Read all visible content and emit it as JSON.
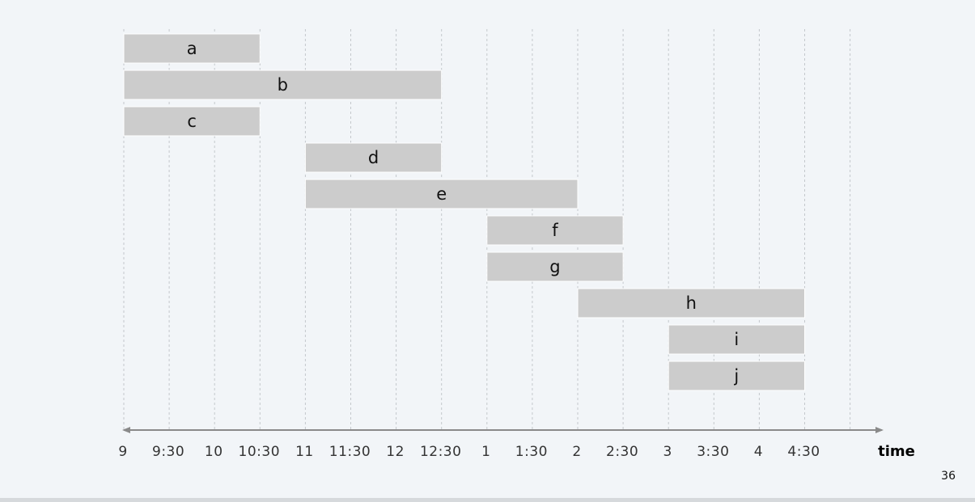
{
  "chart_data": {
    "type": "bar",
    "orientation": "horizontal-intervals",
    "xlabel": "time",
    "ticks": [
      "9",
      "9:30",
      "10",
      "10:30",
      "11",
      "11:30",
      "12",
      "12:30",
      "1",
      "1:30",
      "2",
      "2:30",
      "3",
      "3:30",
      "4",
      "4:30"
    ],
    "grid": true,
    "bar_color": "#cccccc",
    "series": [
      {
        "name": "a",
        "start": 0.0,
        "end": 1.5
      },
      {
        "name": "b",
        "start": 0.0,
        "end": 3.5
      },
      {
        "name": "c",
        "start": 0.0,
        "end": 1.5
      },
      {
        "name": "d",
        "start": 2.0,
        "end": 3.5
      },
      {
        "name": "e",
        "start": 2.0,
        "end": 5.0
      },
      {
        "name": "f",
        "start": 4.0,
        "end": 5.5
      },
      {
        "name": "g",
        "start": 4.0,
        "end": 5.5
      },
      {
        "name": "h",
        "start": 5.0,
        "end": 7.5
      },
      {
        "name": "i",
        "start": 6.0,
        "end": 7.5
      },
      {
        "name": "j",
        "start": 6.0,
        "end": 7.5
      }
    ]
  },
  "page_number": "36"
}
